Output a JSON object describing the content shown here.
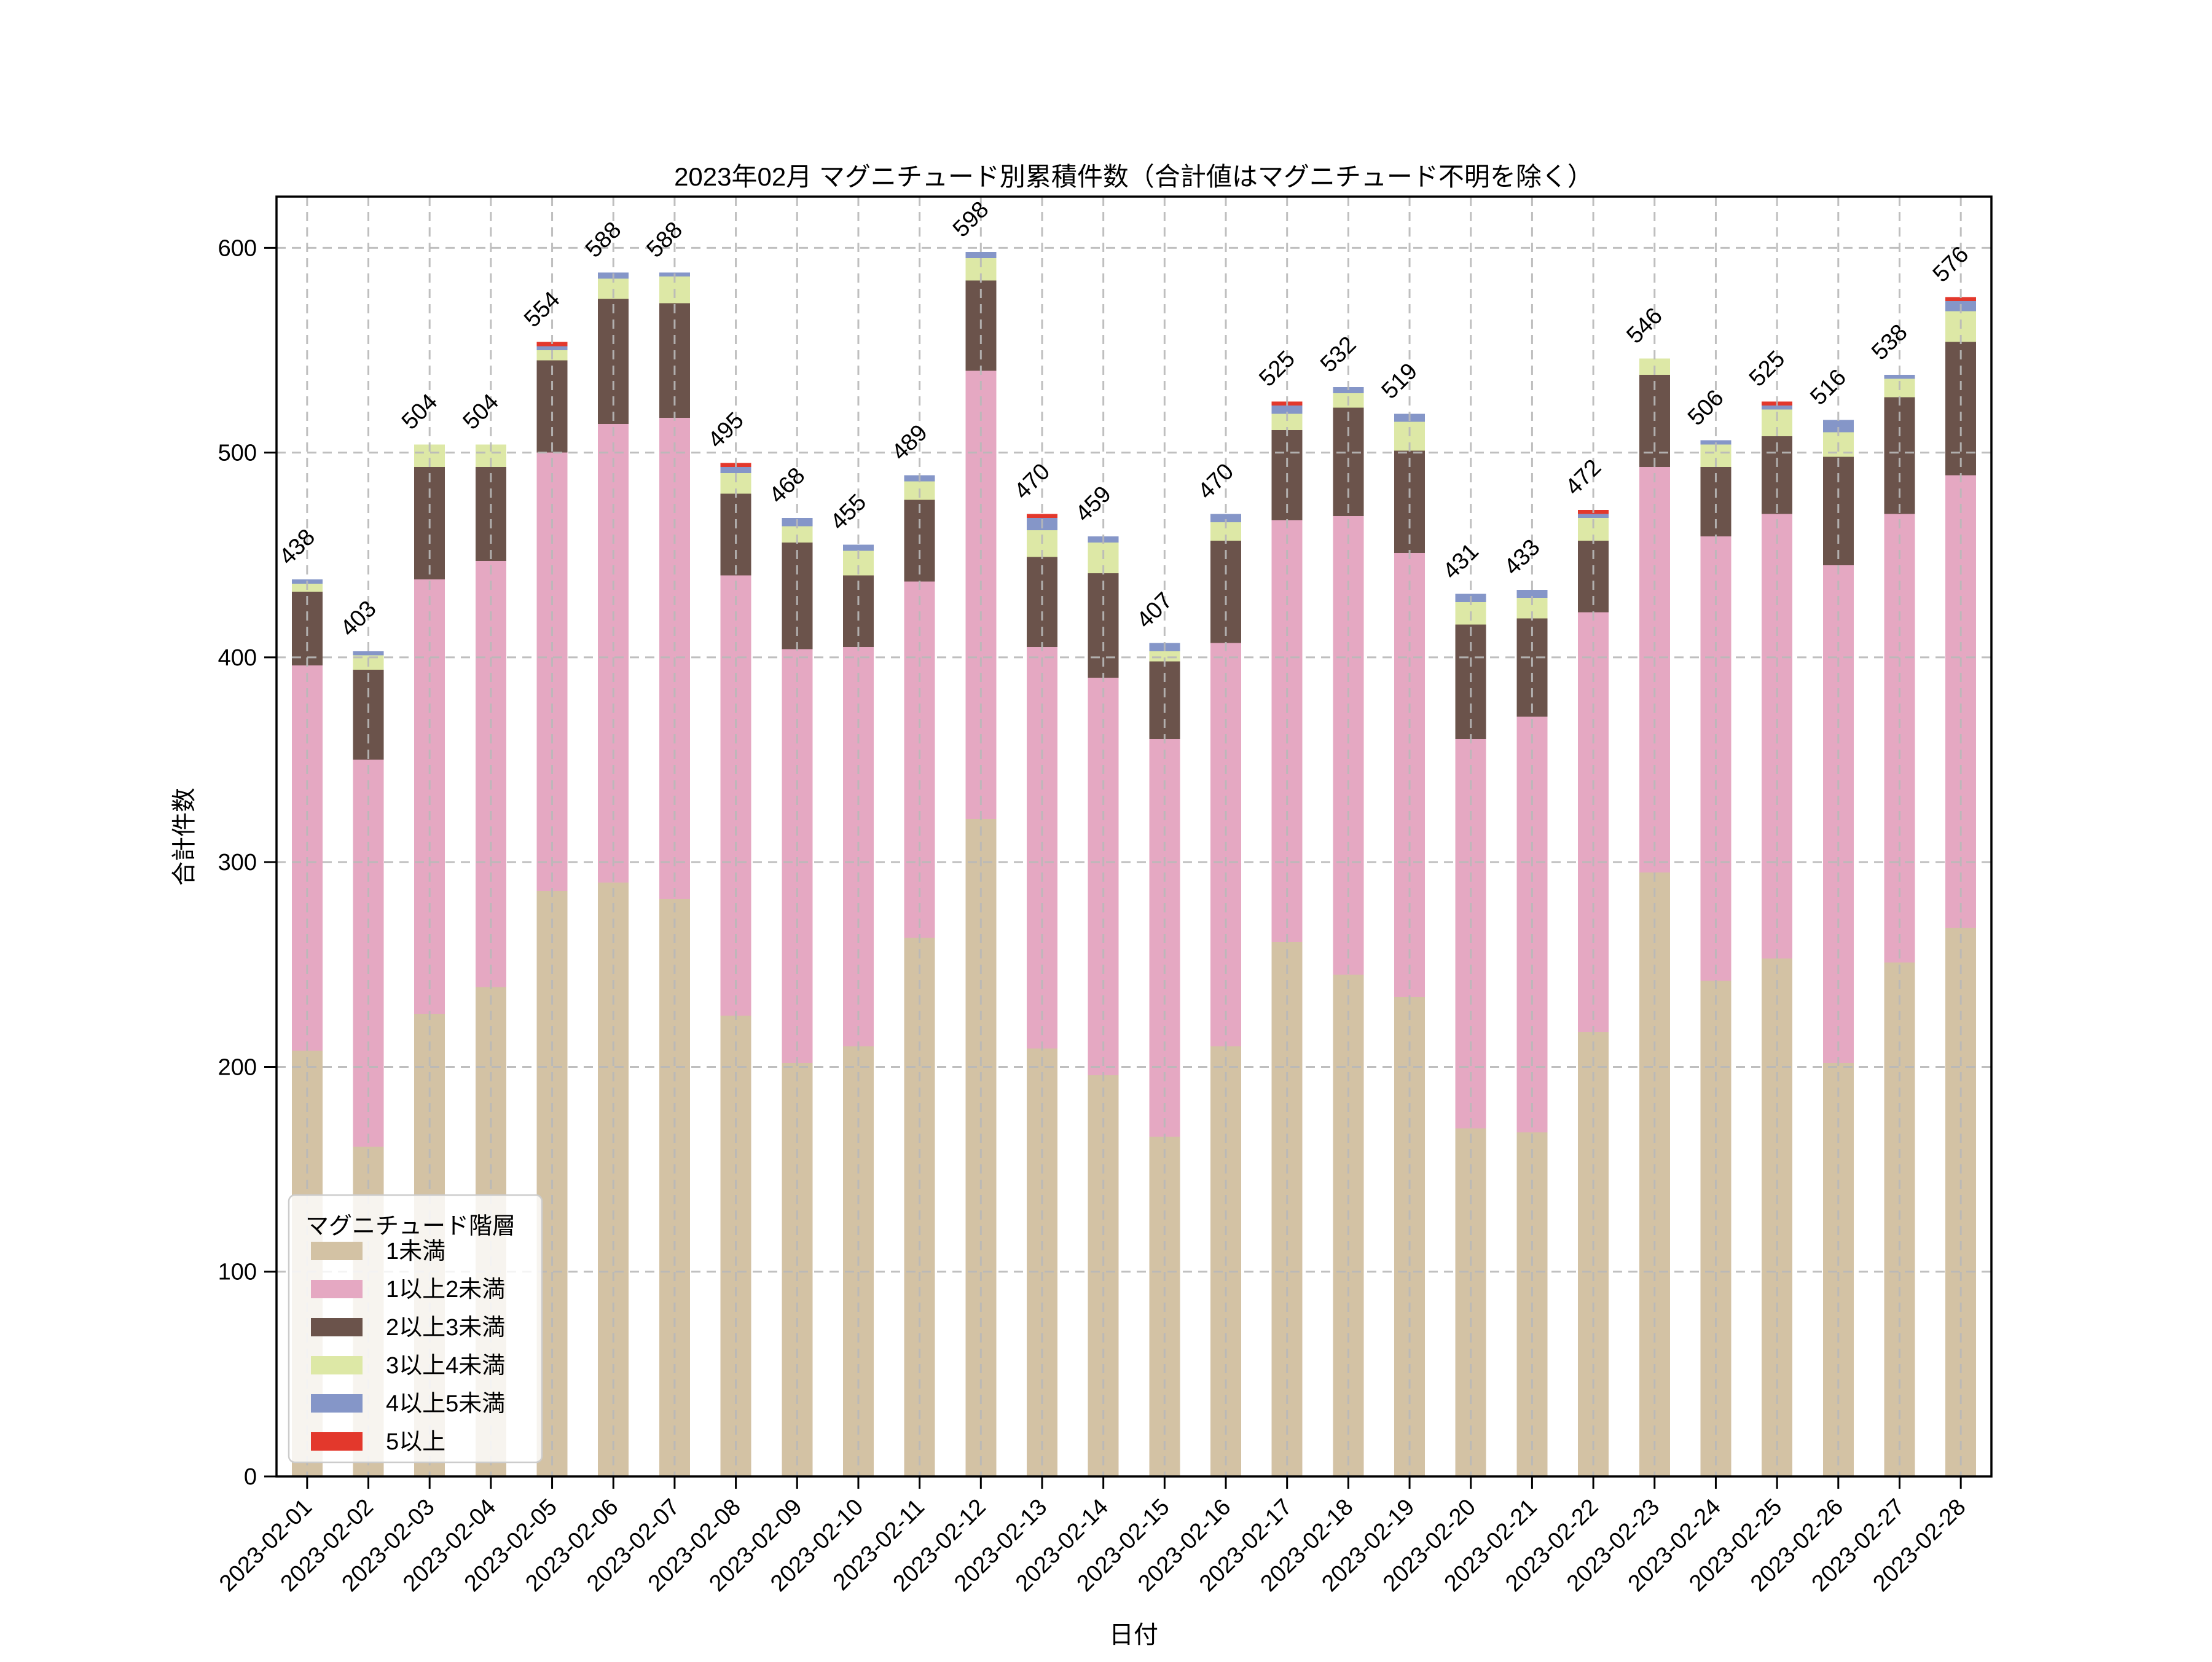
{
  "chart_data": {
    "type": "bar",
    "stacked": true,
    "title": "2023年02月 マグニチュード別累積件数（合計値はマグニチュード不明を除く）",
    "xlabel": "日付",
    "ylabel": "合計件数",
    "legend_title": "マグニチュード階層",
    "legend_position": "lower-left",
    "grid": "dashed gray, horizontal and vertical, drawn over bars",
    "ylim": [
      0,
      625
    ],
    "yticks": [
      0,
      100,
      200,
      300,
      400,
      500,
      600
    ],
    "categories": [
      "2023-02-01",
      "2023-02-02",
      "2023-02-03",
      "2023-02-04",
      "2023-02-05",
      "2023-02-06",
      "2023-02-07",
      "2023-02-08",
      "2023-02-09",
      "2023-02-10",
      "2023-02-11",
      "2023-02-12",
      "2023-02-13",
      "2023-02-14",
      "2023-02-15",
      "2023-02-16",
      "2023-02-17",
      "2023-02-18",
      "2023-02-19",
      "2023-02-20",
      "2023-02-21",
      "2023-02-22",
      "2023-02-23",
      "2023-02-24",
      "2023-02-25",
      "2023-02-26",
      "2023-02-27",
      "2023-02-28"
    ],
    "totals": [
      438,
      403,
      504,
      504,
      554,
      588,
      588,
      495,
      468,
      455,
      489,
      598,
      470,
      459,
      407,
      470,
      525,
      532,
      519,
      431,
      433,
      472,
      546,
      506,
      525,
      516,
      538,
      576
    ],
    "series": [
      {
        "name": "1未満",
        "color": "#d3c2a4",
        "values": [
          208,
          161,
          226,
          239,
          286,
          290,
          282,
          225,
          202,
          210,
          263,
          321,
          209,
          196,
          166,
          210,
          261,
          245,
          234,
          170,
          168,
          217,
          295,
          242,
          253,
          202,
          251,
          268
        ]
      },
      {
        "name": "1以上2未満",
        "color": "#e5a8c2",
        "values": [
          188,
          189,
          212,
          208,
          214,
          224,
          235,
          215,
          202,
          195,
          174,
          219,
          196,
          194,
          194,
          197,
          206,
          224,
          217,
          190,
          203,
          205,
          198,
          217,
          217,
          243,
          219,
          221
        ]
      },
      {
        "name": "2以上3未満",
        "color": "#6b534b",
        "values": [
          36,
          44,
          55,
          46,
          45,
          61,
          56,
          40,
          52,
          35,
          40,
          44,
          44,
          51,
          38,
          50,
          44,
          53,
          50,
          56,
          48,
          35,
          45,
          34,
          38,
          53,
          57,
          65
        ]
      },
      {
        "name": "3以上4未満",
        "color": "#dde8a6",
        "values": [
          4,
          7,
          11,
          11,
          5,
          10,
          13,
          10,
          8,
          12,
          9,
          11,
          13,
          15,
          5,
          9,
          8,
          7,
          14,
          11,
          10,
          11,
          8,
          11,
          13,
          12,
          9,
          15
        ]
      },
      {
        "name": "4以上5未満",
        "color": "#8596c8",
        "values": [
          2,
          2,
          0,
          0,
          2,
          3,
          2,
          3,
          4,
          3,
          3,
          3,
          6,
          3,
          4,
          4,
          4,
          3,
          4,
          4,
          4,
          2,
          0,
          2,
          2,
          6,
          2,
          5
        ]
      },
      {
        "name": "5以上",
        "color": "#e3382c",
        "values": [
          0,
          0,
          0,
          0,
          2,
          0,
          0,
          2,
          0,
          0,
          0,
          0,
          2,
          0,
          0,
          0,
          2,
          0,
          0,
          0,
          0,
          2,
          0,
          0,
          2,
          0,
          0,
          2
        ]
      }
    ]
  },
  "colors": {
    "background": "#ffffff",
    "frame": "#000000",
    "grid": "#b9b9b9",
    "text": "#000000",
    "legend_border": "#cccccc",
    "legend_background": "rgba(255,255,255,0.82)"
  }
}
